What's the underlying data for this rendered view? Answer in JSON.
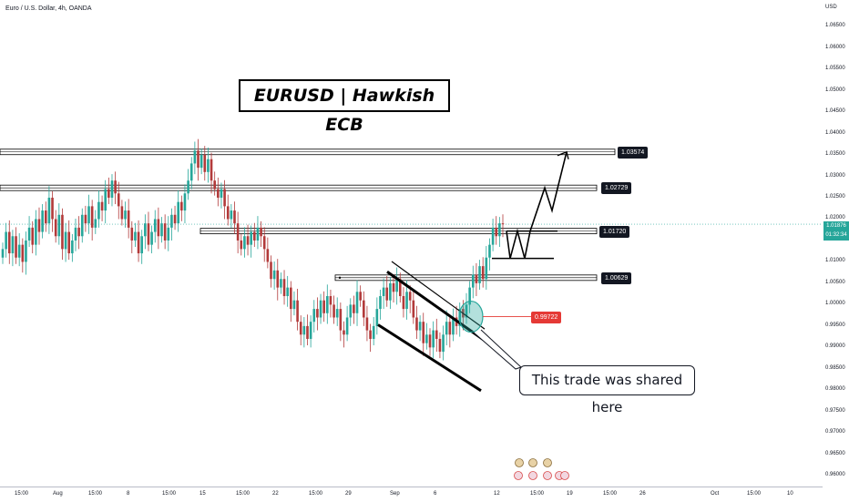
{
  "header": {
    "symbol": "Euro / U.S. Dollar, 4h, OANDA"
  },
  "annotations": {
    "title": "EURUSD | Hawkish ECB",
    "callout": "This trade was shared here"
  },
  "colors": {
    "bull": "#26a69a",
    "bear": "#b23a3a",
    "trendline": "#000000",
    "marker_red": "#e53935",
    "highlight": "#26a69a",
    "axis_bg": "#ffffff",
    "label_bg": "#131722"
  },
  "price_labels": [
    {
      "text": "1.03574",
      "price": 1.0357
    },
    {
      "text": "1.02729",
      "price": 1.0273
    },
    {
      "text": "1.01720",
      "price": 1.0172
    },
    {
      "text": "1.00629",
      "price": 1.0063
    },
    {
      "text": "0.99722",
      "price": 0.9972,
      "color": "red"
    }
  ],
  "current_price": {
    "price": "1.01876",
    "countdown": "01:32:34",
    "value": 1.0188
  },
  "chart_data": {
    "type": "candlestick",
    "y_axis_unit": "USD",
    "ylim": [
      0.9575,
      1.0695
    ],
    "y_ticks": [
      "1.06500",
      "1.06000",
      "1.05500",
      "1.05000",
      "1.04500",
      "1.04000",
      "1.03500",
      "1.03000",
      "1.02500",
      "1.02000",
      "1.01500",
      "1.01000",
      "1.00500",
      "1.00000",
      "0.99500",
      "0.99000",
      "0.98500",
      "0.98000",
      "0.97500",
      "0.97000",
      "0.96500",
      "0.96000"
    ],
    "x_ticks": [
      "15:00",
      "Aug",
      "15:00",
      "8",
      "15:00",
      "15",
      "15:00",
      "22",
      "15:00",
      "29",
      "Sep",
      "6",
      "12",
      "15:00",
      "19",
      "15:00",
      "26",
      "Oct",
      "15:00",
      "10"
    ],
    "horizontal_levels": [
      1.0357,
      1.0273,
      1.0172,
      1.0063
    ],
    "trend_channel": "descending",
    "projection_path": [
      1.0172,
      1.0108,
      1.0172,
      1.0108,
      1.0172,
      1.0273,
      1.022,
      1.0357
    ],
    "series_pattern": [
      1.013,
      1.017,
      1.012,
      1.016,
      1.011,
      1.014,
      1.01,
      1.015,
      1.018,
      1.014,
      1.02,
      1.017,
      1.022,
      1.019,
      1.025,
      1.02,
      1.016,
      1.021,
      1.013,
      1.017,
      1.012,
      1.015,
      1.018,
      1.016,
      1.021,
      1.019,
      1.023,
      1.018,
      1.02,
      1.024,
      1.022,
      1.027,
      1.025,
      1.029,
      1.026,
      1.023,
      1.02,
      1.022,
      1.018,
      1.015,
      1.017,
      1.012,
      1.016,
      1.019,
      1.014,
      1.017,
      1.02,
      1.016,
      1.019,
      1.015,
      1.018,
      1.021,
      1.019,
      1.024,
      1.022,
      1.026,
      1.029,
      1.033,
      1.036,
      1.032,
      1.035,
      1.031,
      1.034,
      1.029,
      1.027,
      1.025,
      1.027,
      1.023,
      1.02,
      1.022,
      1.019,
      1.015,
      1.013,
      1.016,
      1.014,
      1.017,
      1.015,
      1.018,
      1.016,
      1.013,
      1.01,
      1.006,
      1.008,
      1.004,
      1.006,
      1.002,
      1.004,
      0.999,
      1.001,
      0.996,
      0.993,
      0.995,
      0.992,
      0.996,
      0.999,
      0.997,
      1.001,
      0.998,
      1.002,
      1.0,
      0.997,
      0.999,
      0.994,
      0.993,
      0.997,
      1.0,
      0.998,
      1.003,
      1.001,
      0.997,
      0.994,
      0.992,
      0.995,
      0.999,
      1.002,
      1.004,
      1.001,
      1.005,
      1.003,
      1.006,
      1.002,
      0.999,
      1.003,
      1.001,
      0.997,
      0.994,
      0.996,
      0.991,
      0.993,
      0.99,
      0.994,
      0.992,
      0.989,
      0.993,
      0.996,
      0.993,
      0.997,
      0.995,
      0.999,
      0.997,
      1.0,
      1.004,
      1.007,
      1.005,
      1.009,
      1.006,
      1.011,
      1.014,
      1.018,
      1.016,
      1.019,
      1.0188
    ]
  }
}
